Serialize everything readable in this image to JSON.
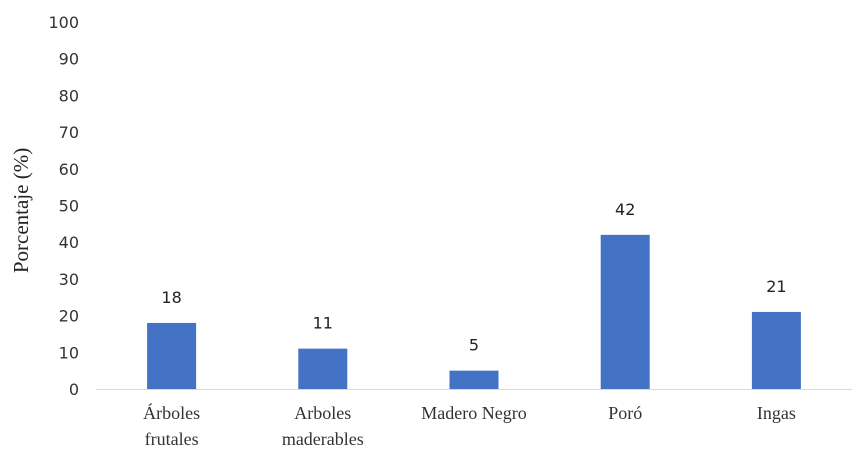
{
  "chart_data": {
    "type": "bar",
    "title": "",
    "xlabel": "",
    "ylabel": "Porcentaje (%)",
    "categories": [
      "Árboles frutales",
      "Arboles maderables",
      "Madero Negro",
      "Poró",
      "Ingas"
    ],
    "category_lines": [
      [
        "Árboles",
        "frutales"
      ],
      [
        "Arboles",
        "maderables"
      ],
      [
        "Madero Negro"
      ],
      [
        "Poró"
      ],
      [
        "Ingas"
      ]
    ],
    "values": [
      18,
      11,
      5,
      42,
      21
    ],
    "data_labels": [
      "18",
      "11",
      "5",
      "42",
      "21"
    ],
    "ylim": [
      0,
      100
    ],
    "yticks": [
      0,
      10,
      20,
      30,
      40,
      50,
      60,
      70,
      80,
      90,
      100
    ],
    "grid": false,
    "legend": "none",
    "bar_color": "#4472C4",
    "axis_color": "#D9D9D9"
  }
}
